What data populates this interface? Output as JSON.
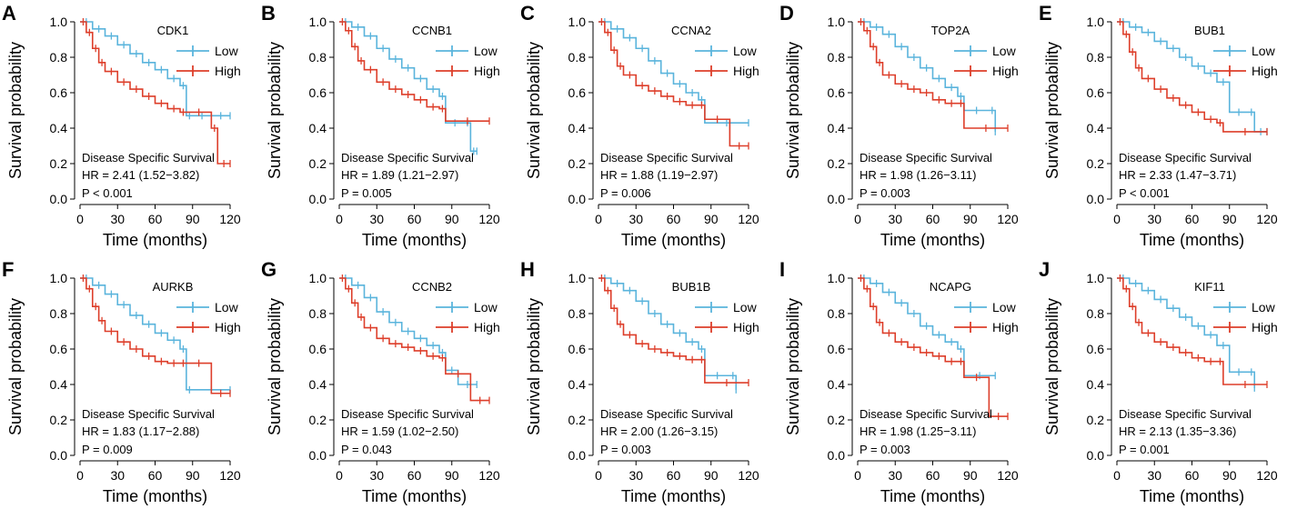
{
  "figure": {
    "colors": {
      "low": "#5ab4dc",
      "high": "#dd3e2a"
    },
    "axis_labels": {
      "y": "Survival probability",
      "x": "Time (months)"
    },
    "x_ticks": [
      0,
      30,
      60,
      90,
      120
    ],
    "y_ticks": [
      "0.0",
      "0.2",
      "0.4",
      "0.6",
      "0.8",
      "1.0"
    ],
    "legend_labels": [
      "Low",
      "High"
    ],
    "annotation_title": "Disease Specific Survival"
  },
  "chart_data": [
    {
      "panel": "A",
      "type": "line",
      "title": "CDK1",
      "xlabel": "Time (months)",
      "ylabel": "Survival probability",
      "xlim": [
        0,
        120
      ],
      "ylim": [
        0,
        1
      ],
      "series": [
        {
          "name": "Low",
          "x": [
            0,
            10,
            20,
            30,
            40,
            50,
            60,
            70,
            80,
            85,
            90,
            105,
            120
          ],
          "y": [
            1.0,
            0.96,
            0.92,
            0.87,
            0.82,
            0.77,
            0.73,
            0.68,
            0.64,
            0.47,
            0.47,
            0.47,
            0.47
          ]
        },
        {
          "name": "High",
          "x": [
            0,
            5,
            10,
            15,
            20,
            30,
            40,
            50,
            60,
            70,
            80,
            85,
            105,
            110,
            120
          ],
          "y": [
            1.0,
            0.94,
            0.85,
            0.77,
            0.72,
            0.66,
            0.62,
            0.58,
            0.54,
            0.51,
            0.49,
            0.49,
            0.4,
            0.2,
            0.2
          ]
        }
      ],
      "annotation": {
        "label": "Disease Specific Survival",
        "hr": "HR = 2.41 (1.52−3.82)",
        "p": "P < 0.001"
      }
    },
    {
      "panel": "B",
      "type": "line",
      "title": "CCNB1",
      "xlabel": "Time (months)",
      "ylabel": "Survival probability",
      "xlim": [
        0,
        120
      ],
      "ylim": [
        0,
        1
      ],
      "series": [
        {
          "name": "Low",
          "x": [
            0,
            10,
            20,
            30,
            40,
            50,
            60,
            70,
            80,
            85,
            100,
            105,
            110
          ],
          "y": [
            1.0,
            0.97,
            0.92,
            0.85,
            0.79,
            0.74,
            0.68,
            0.62,
            0.58,
            0.43,
            0.43,
            0.27,
            0.27
          ]
        },
        {
          "name": "High",
          "x": [
            0,
            5,
            10,
            15,
            20,
            30,
            40,
            50,
            60,
            70,
            80,
            85,
            120
          ],
          "y": [
            1.0,
            0.95,
            0.86,
            0.78,
            0.73,
            0.66,
            0.62,
            0.59,
            0.56,
            0.52,
            0.51,
            0.44,
            0.44
          ]
        }
      ],
      "annotation": {
        "label": "Disease Specific Survival",
        "hr": "HR = 1.89 (1.21−2.97)",
        "p": "P = 0.005"
      }
    },
    {
      "panel": "C",
      "type": "line",
      "title": "CCNA2",
      "xlabel": "Time (months)",
      "ylabel": "Survival probability",
      "xlim": [
        0,
        120
      ],
      "ylim": [
        0,
        1
      ],
      "series": [
        {
          "name": "Low",
          "x": [
            0,
            10,
            20,
            30,
            40,
            50,
            60,
            70,
            80,
            85,
            120
          ],
          "y": [
            1.0,
            0.96,
            0.91,
            0.85,
            0.78,
            0.71,
            0.65,
            0.6,
            0.56,
            0.43,
            0.43
          ]
        },
        {
          "name": "High",
          "x": [
            0,
            5,
            10,
            15,
            20,
            30,
            40,
            50,
            60,
            70,
            80,
            85,
            105,
            120
          ],
          "y": [
            1.0,
            0.94,
            0.84,
            0.75,
            0.7,
            0.64,
            0.61,
            0.58,
            0.55,
            0.53,
            0.53,
            0.45,
            0.3,
            0.3
          ]
        }
      ],
      "annotation": {
        "label": "Disease Specific Survival",
        "hr": "HR = 1.88 (1.19−2.97)",
        "p": "P = 0.006"
      }
    },
    {
      "panel": "D",
      "type": "line",
      "title": "TOP2A",
      "xlabel": "Time (months)",
      "ylabel": "Survival probability",
      "xlim": [
        0,
        120
      ],
      "ylim": [
        0,
        1
      ],
      "series": [
        {
          "name": "Low",
          "x": [
            0,
            10,
            20,
            30,
            40,
            50,
            60,
            70,
            80,
            85,
            105,
            110
          ],
          "y": [
            1.0,
            0.97,
            0.93,
            0.86,
            0.8,
            0.74,
            0.68,
            0.63,
            0.58,
            0.5,
            0.5,
            0.38
          ]
        },
        {
          "name": "High",
          "x": [
            0,
            5,
            10,
            15,
            20,
            30,
            40,
            50,
            60,
            70,
            80,
            85,
            120
          ],
          "y": [
            1.0,
            0.95,
            0.86,
            0.77,
            0.7,
            0.65,
            0.62,
            0.6,
            0.56,
            0.54,
            0.54,
            0.4,
            0.4
          ]
        }
      ],
      "annotation": {
        "label": "Disease Specific Survival",
        "hr": "HR = 1.98 (1.26−3.11)",
        "p": "P = 0.003"
      }
    },
    {
      "panel": "E",
      "type": "line",
      "title": "BUB1",
      "xlabel": "Time (months)",
      "ylabel": "Survival probability",
      "xlim": [
        0,
        120
      ],
      "ylim": [
        0,
        1
      ],
      "series": [
        {
          "name": "Low",
          "x": [
            0,
            10,
            20,
            30,
            40,
            50,
            60,
            70,
            80,
            90,
            105,
            110,
            120
          ],
          "y": [
            1.0,
            0.97,
            0.94,
            0.89,
            0.85,
            0.8,
            0.75,
            0.71,
            0.66,
            0.49,
            0.49,
            0.38,
            0.38
          ]
        },
        {
          "name": "High",
          "x": [
            0,
            5,
            10,
            15,
            20,
            30,
            40,
            50,
            60,
            70,
            80,
            85,
            120
          ],
          "y": [
            1.0,
            0.93,
            0.83,
            0.74,
            0.68,
            0.62,
            0.57,
            0.53,
            0.49,
            0.45,
            0.43,
            0.38,
            0.38
          ]
        }
      ],
      "annotation": {
        "label": "Disease Specific Survival",
        "hr": "HR = 2.33 (1.47−3.71)",
        "p": "P < 0.001"
      }
    },
    {
      "panel": "F",
      "type": "line",
      "title": "AURKB",
      "xlabel": "Time (months)",
      "ylabel": "Survival probability",
      "xlim": [
        0,
        120
      ],
      "ylim": [
        0,
        1
      ],
      "series": [
        {
          "name": "Low",
          "x": [
            0,
            10,
            20,
            30,
            40,
            50,
            60,
            70,
            80,
            85,
            90,
            120
          ],
          "y": [
            1.0,
            0.96,
            0.91,
            0.85,
            0.79,
            0.74,
            0.69,
            0.65,
            0.6,
            0.37,
            0.37,
            0.37
          ]
        },
        {
          "name": "High",
          "x": [
            0,
            5,
            10,
            15,
            20,
            30,
            40,
            50,
            60,
            70,
            80,
            85,
            105,
            120
          ],
          "y": [
            1.0,
            0.94,
            0.84,
            0.76,
            0.7,
            0.64,
            0.6,
            0.56,
            0.53,
            0.52,
            0.52,
            0.52,
            0.35,
            0.35
          ]
        }
      ],
      "annotation": {
        "label": "Disease Specific Survival",
        "hr": "HR = 1.83 (1.17−2.88)",
        "p": "P = 0.009"
      }
    },
    {
      "panel": "G",
      "type": "line",
      "title": "CCNB2",
      "xlabel": "Time (months)",
      "ylabel": "Survival probability",
      "xlim": [
        0,
        120
      ],
      "ylim": [
        0,
        1
      ],
      "series": [
        {
          "name": "Low",
          "x": [
            0,
            10,
            20,
            30,
            40,
            50,
            60,
            70,
            80,
            85,
            95,
            110
          ],
          "y": [
            1.0,
            0.96,
            0.89,
            0.81,
            0.75,
            0.7,
            0.66,
            0.62,
            0.58,
            0.48,
            0.4,
            0.4
          ]
        },
        {
          "name": "High",
          "x": [
            0,
            5,
            10,
            15,
            20,
            30,
            40,
            50,
            60,
            70,
            80,
            85,
            105,
            120
          ],
          "y": [
            1.0,
            0.94,
            0.86,
            0.78,
            0.72,
            0.66,
            0.63,
            0.61,
            0.59,
            0.56,
            0.55,
            0.46,
            0.31,
            0.31
          ]
        }
      ],
      "annotation": {
        "label": "Disease Specific Survival",
        "hr": "HR = 1.59 (1.02−2.50)",
        "p": "P = 0.043"
      }
    },
    {
      "panel": "H",
      "type": "line",
      "title": "BUB1B",
      "xlabel": "Time (months)",
      "ylabel": "Survival probability",
      "xlim": [
        0,
        120
      ],
      "ylim": [
        0,
        1
      ],
      "series": [
        {
          "name": "Low",
          "x": [
            0,
            10,
            20,
            30,
            40,
            50,
            60,
            70,
            80,
            85,
            105,
            110
          ],
          "y": [
            1.0,
            0.97,
            0.93,
            0.87,
            0.8,
            0.74,
            0.69,
            0.64,
            0.6,
            0.45,
            0.45,
            0.37
          ]
        },
        {
          "name": "High",
          "x": [
            0,
            5,
            10,
            15,
            20,
            30,
            40,
            50,
            60,
            70,
            80,
            85,
            120
          ],
          "y": [
            1.0,
            0.93,
            0.83,
            0.74,
            0.68,
            0.63,
            0.6,
            0.58,
            0.56,
            0.54,
            0.54,
            0.41,
            0.41
          ]
        }
      ],
      "annotation": {
        "label": "Disease Specific Survival",
        "hr": "HR = 2.00 (1.26−3.15)",
        "p": "P = 0.003"
      }
    },
    {
      "panel": "I",
      "type": "line",
      "title": "NCAPG",
      "xlabel": "Time (months)",
      "ylabel": "Survival probability",
      "xlim": [
        0,
        120
      ],
      "ylim": [
        0,
        1
      ],
      "series": [
        {
          "name": "Low",
          "x": [
            0,
            10,
            20,
            30,
            40,
            50,
            60,
            70,
            80,
            85,
            110
          ],
          "y": [
            1.0,
            0.97,
            0.92,
            0.86,
            0.8,
            0.73,
            0.68,
            0.64,
            0.6,
            0.45,
            0.45
          ]
        },
        {
          "name": "High",
          "x": [
            0,
            5,
            10,
            15,
            20,
            30,
            40,
            50,
            60,
            70,
            80,
            85,
            105,
            120
          ],
          "y": [
            1.0,
            0.94,
            0.84,
            0.75,
            0.69,
            0.64,
            0.61,
            0.58,
            0.56,
            0.53,
            0.53,
            0.44,
            0.22,
            0.22
          ]
        }
      ],
      "annotation": {
        "label": "Disease Specific Survival",
        "hr": "HR = 1.98 (1.25−3.11)",
        "p": "P = 0.003"
      }
    },
    {
      "panel": "J",
      "type": "line",
      "title": "KIF11",
      "xlabel": "Time (months)",
      "ylabel": "Survival probability",
      "xlim": [
        0,
        120
      ],
      "ylim": [
        0,
        1
      ],
      "series": [
        {
          "name": "Low",
          "x": [
            0,
            10,
            20,
            30,
            40,
            50,
            60,
            70,
            80,
            90,
            105,
            110
          ],
          "y": [
            1.0,
            0.97,
            0.93,
            0.88,
            0.83,
            0.78,
            0.73,
            0.68,
            0.62,
            0.47,
            0.47,
            0.38
          ]
        },
        {
          "name": "High",
          "x": [
            0,
            5,
            10,
            15,
            20,
            30,
            40,
            50,
            60,
            70,
            80,
            85,
            120
          ],
          "y": [
            1.0,
            0.94,
            0.84,
            0.75,
            0.69,
            0.64,
            0.61,
            0.58,
            0.55,
            0.53,
            0.53,
            0.4,
            0.4
          ]
        }
      ],
      "annotation": {
        "label": "Disease Specific Survival",
        "hr": "HR = 2.13 (1.35−3.36)",
        "p": "P = 0.001"
      }
    }
  ]
}
